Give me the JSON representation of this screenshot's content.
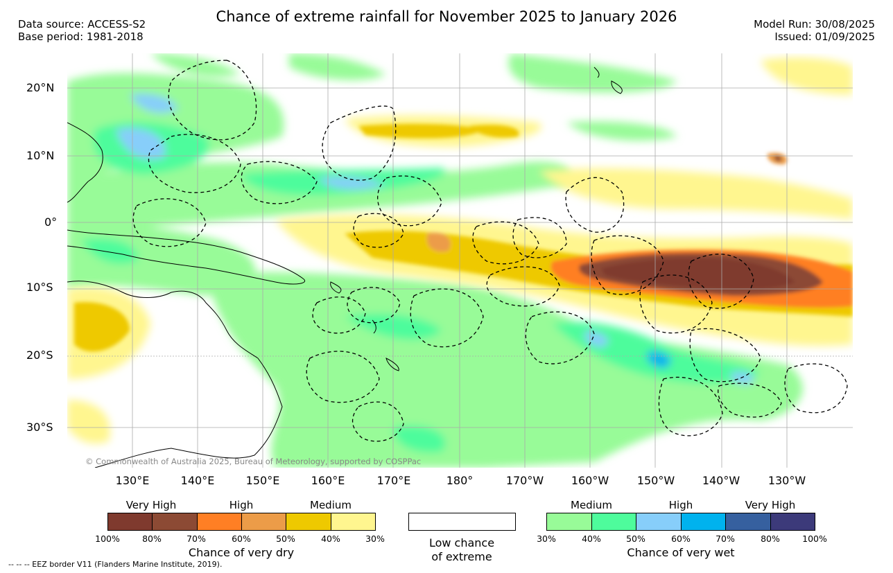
{
  "title": "Chance of extreme rainfall for November 2025 to January 2026",
  "meta_left": {
    "source": "Data source: ACCESS-S2",
    "base": "Base period: 1981-2018"
  },
  "meta_right": {
    "model_run": "Model Run: 30/08/2025",
    "issued": "Issued: 01/09/2025"
  },
  "map": {
    "lat_labels": [
      "20°N",
      "10°N",
      "0°",
      "10°S",
      "20°S",
      "30°S"
    ],
    "lon_labels": [
      "130°E",
      "140°E",
      "150°E",
      "160°E",
      "170°E",
      "180°",
      "170°W",
      "160°W",
      "150°W",
      "140°W",
      "130°W"
    ],
    "copyright": "© Commonwealth of Australia 2025, Bureau of Meteorology, supported by COSPPac",
    "eez_note": "-- -- -- EEZ border V11 (Flanders Marine Institute, 2019)."
  },
  "legend": {
    "dry": {
      "headings": [
        "Very High",
        "High",
        "Medium"
      ],
      "colors": [
        "#7f3a2e",
        "#8c4a34",
        "#ff7f24",
        "#ec9c48",
        "#eec900",
        "#fff68f"
      ],
      "ticks": [
        "100%",
        "80%",
        "70%",
        "60%",
        "50%",
        "40%",
        "30%"
      ],
      "caption": "Chance of very dry"
    },
    "low": {
      "line1": "Low chance",
      "line2": "of extreme",
      "color": "#ffffff"
    },
    "wet": {
      "headings": [
        "Medium",
        "High",
        "Very High"
      ],
      "colors": [
        "#98fb98",
        "#4efc9c",
        "#87cefa",
        "#00b2ee",
        "#36609f",
        "#3c3a7a"
      ],
      "ticks": [
        "30%",
        "40%",
        "50%",
        "60%",
        "70%",
        "80%",
        "100%"
      ],
      "caption": "Chance of very wet"
    }
  }
}
